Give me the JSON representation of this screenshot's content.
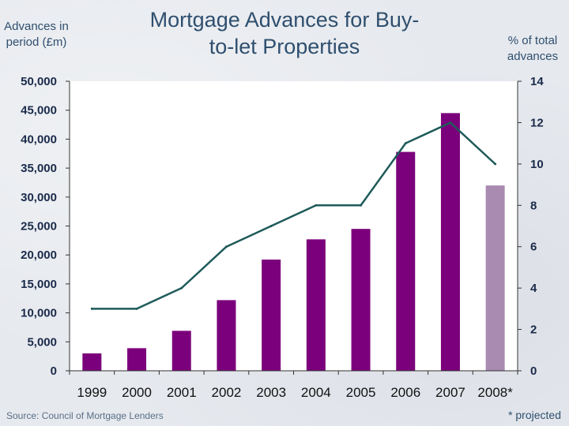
{
  "chart_data": {
    "type": "bar",
    "title": "Mortgage Advances for Buy-to-let Properties",
    "ylabel": "Advances in period (£m)",
    "y2label": "% of total advances",
    "categories": [
      "1999",
      "2000",
      "2001",
      "2002",
      "2003",
      "2004",
      "2005",
      "2006",
      "2007",
      "2008*"
    ],
    "ylim": [
      0,
      50000
    ],
    "y_ticks": [
      "0",
      "5,000",
      "10,000",
      "15,000",
      "20,000",
      "25,000",
      "30,000",
      "35,000",
      "40,000",
      "45,000",
      "50,000"
    ],
    "y2lim": [
      0,
      14
    ],
    "y2_ticks": [
      "0",
      "2",
      "4",
      "6",
      "8",
      "10",
      "12",
      "14"
    ],
    "series": [
      {
        "kind": "bar",
        "values": [
          3000,
          3900,
          6900,
          12200,
          19200,
          22700,
          24500,
          37800,
          44500,
          32000
        ],
        "colors": [
          "#7b007b",
          "#7b007b",
          "#7b007b",
          "#7b007b",
          "#7b007b",
          "#7b007b",
          "#7b007b",
          "#7b007b",
          "#7b007b",
          "#a98ab0"
        ]
      },
      {
        "kind": "line",
        "axis": "right",
        "values": [
          3.0,
          3.0,
          4.0,
          6.0,
          7.0,
          8.0,
          8.0,
          11.0,
          12.0,
          10.0
        ],
        "color": "#1f5a5a"
      }
    ],
    "grid": false,
    "source": "Source: Council of Mortgage Lenders",
    "note": "* projected"
  }
}
